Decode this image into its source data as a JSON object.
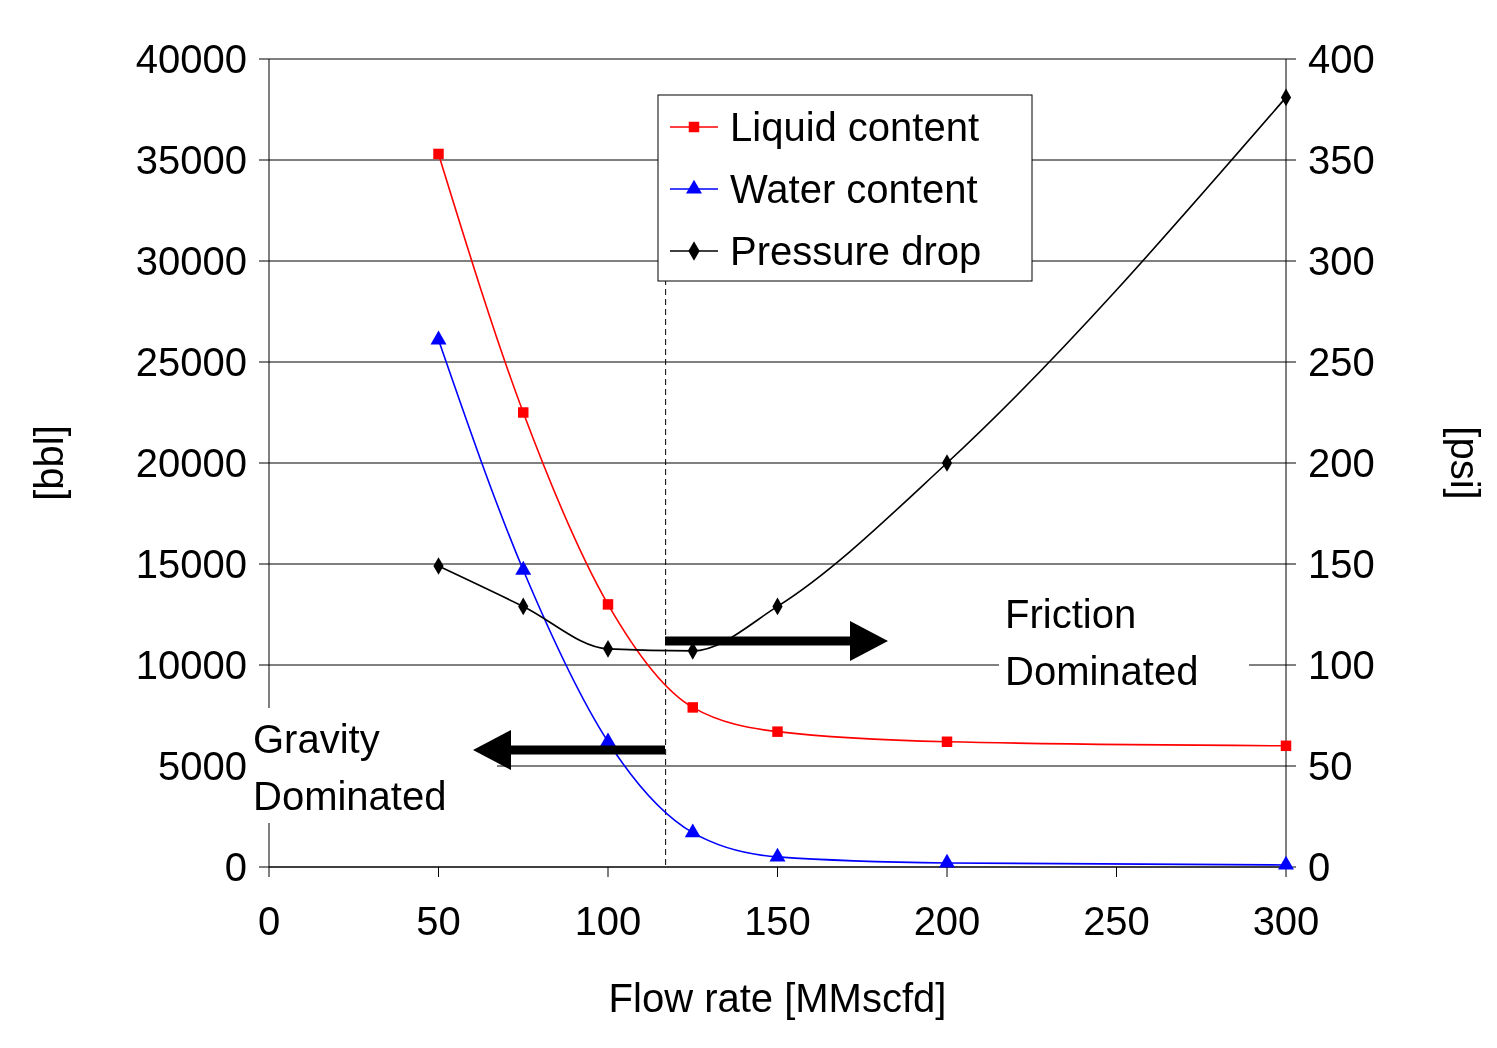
{
  "chart_data": {
    "type": "line",
    "xlabel": "Flow rate [MMscfd]",
    "ylabel": "[bbl]",
    "y2label": "[psi]",
    "xlim": [
      0,
      300
    ],
    "xticks": [
      0,
      50,
      100,
      150,
      200,
      250,
      300
    ],
    "ylim": [
      0,
      40000
    ],
    "yticks": [
      0,
      5000,
      10000,
      15000,
      20000,
      25000,
      30000,
      35000,
      40000
    ],
    "y2lim": [
      0,
      400
    ],
    "y2ticks": [
      0,
      50,
      100,
      150,
      200,
      250,
      300,
      350,
      400
    ],
    "x": [
      50,
      75,
      100,
      125,
      150,
      200,
      300
    ],
    "series": [
      {
        "name": "Liquid content",
        "color": "#ff0000",
        "marker": "square",
        "values": [
          35300,
          22500,
          13000,
          7900,
          6700,
          6200,
          6000
        ]
      },
      {
        "name": "Water content",
        "color": "#0000ff",
        "marker": "triangle",
        "values": [
          26100,
          14700,
          6200,
          1700,
          500,
          200,
          100
        ]
      },
      {
        "name": "Pressure drop",
        "color": "#000000",
        "marker": "diamond",
        "axis": "y2",
        "values": [
          149,
          129,
          108,
          107,
          129,
          200,
          381
        ]
      }
    ],
    "ref_lines": [
      {
        "axis": "x",
        "value": 117,
        "color": "#000000",
        "line_style": "dashed"
      }
    ],
    "annotations": [
      "Gravity Dominated",
      "Friction Dominated"
    ],
    "grid": "y",
    "legend": "top"
  }
}
